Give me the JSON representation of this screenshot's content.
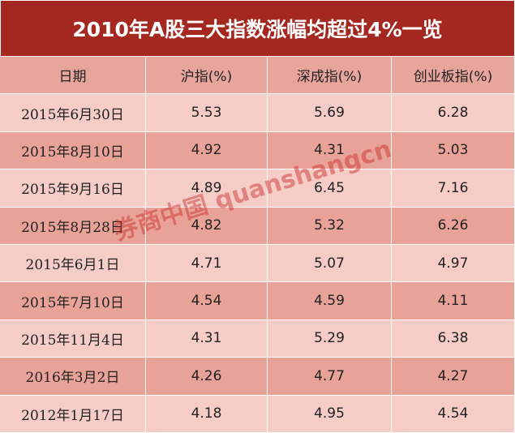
{
  "header": {
    "title": "2010年A股三大指数涨幅均超过4%一览"
  },
  "table": {
    "columns": [
      "日期",
      "沪指(%)",
      "深成指(%)",
      "创业板指(%)"
    ],
    "rows": [
      [
        "2015年6月30日",
        "5.53",
        "5.69",
        "6.28"
      ],
      [
        "2015年8月10日",
        "4.92",
        "4.31",
        "5.03"
      ],
      [
        "2015年9月16日",
        "4.89",
        "6.45",
        "7.16"
      ],
      [
        "2015年8月28日",
        "4.82",
        "5.32",
        "6.26"
      ],
      [
        "2015年6月1日",
        "4.71",
        "5.07",
        "4.97"
      ],
      [
        "2015年7月10日",
        "4.54",
        "4.59",
        "4.11"
      ],
      [
        "2015年11月4日",
        "4.31",
        "5.29",
        "6.38"
      ],
      [
        "2016年3月2日",
        "4.26",
        "4.77",
        "4.27"
      ],
      [
        "2012年1月17日",
        "4.18",
        "4.95",
        "4.54"
      ]
    ]
  },
  "watermark": "券商中国 quanshangcn"
}
